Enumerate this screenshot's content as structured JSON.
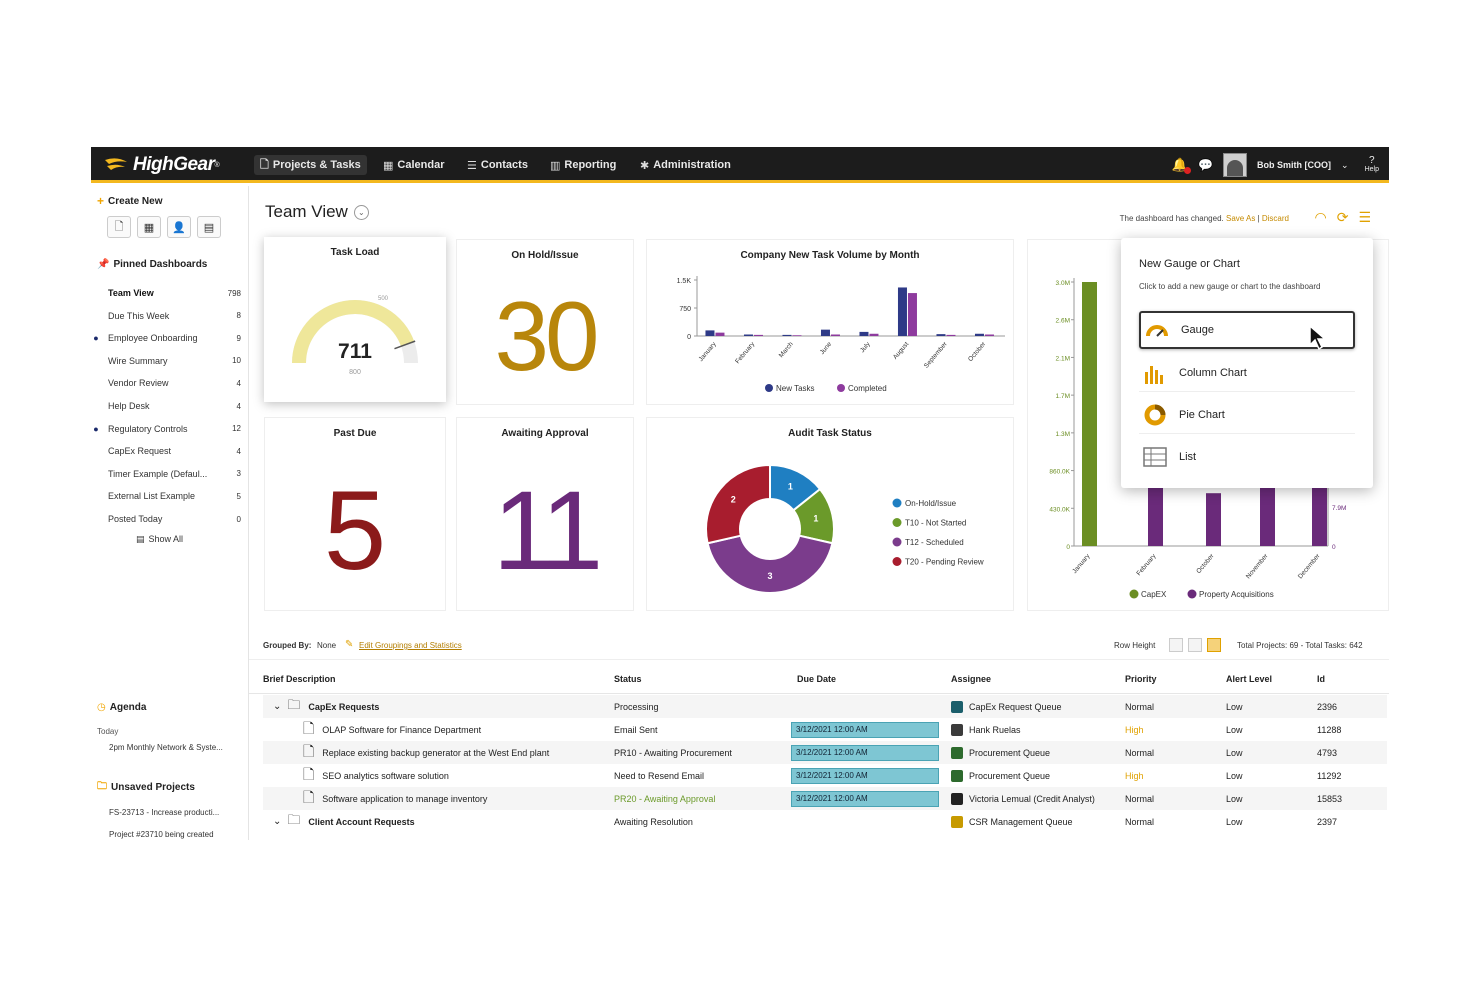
{
  "brand": "HighGear",
  "nav": {
    "items": [
      {
        "label": "Projects & Tasks",
        "icon": "document-icon",
        "active": true
      },
      {
        "label": "Calendar",
        "icon": "calendar-icon"
      },
      {
        "label": "Contacts",
        "icon": "contacts-icon"
      },
      {
        "label": "Reporting",
        "icon": "reporting-icon"
      },
      {
        "label": "Administration",
        "icon": "administration-icon"
      }
    ],
    "user": "Bob Smith [COO]",
    "help": "Help"
  },
  "sidebar": {
    "create_new": "Create New",
    "pinned_title": "Pinned Dashboards",
    "pinned": [
      {
        "label": "Team View",
        "count": "798",
        "dot": false,
        "bold": true
      },
      {
        "label": "Due This Week",
        "count": "8",
        "dot": false
      },
      {
        "label": "Employee Onboarding",
        "count": "9",
        "dot": true
      },
      {
        "label": "Wire Summary",
        "count": "10",
        "dot": false
      },
      {
        "label": "Vendor Review",
        "count": "4",
        "dot": false
      },
      {
        "label": "Help Desk",
        "count": "4",
        "dot": false
      },
      {
        "label": "Regulatory Controls",
        "count": "12",
        "dot": true
      },
      {
        "label": "CapEx Request",
        "count": "4",
        "dot": false
      },
      {
        "label": "Timer Example (Defaul...",
        "count": "3",
        "dot": false
      },
      {
        "label": "External List Example",
        "count": "5",
        "dot": false
      },
      {
        "label": "Posted Today",
        "count": "0",
        "dot": false
      }
    ],
    "show_all": "Show All",
    "agenda_title": "Agenda",
    "agenda_day": "Today",
    "agenda_item": "2pm Monthly Network & Syste...",
    "unsaved_title": "Unsaved Projects",
    "unsaved": [
      "FS-23713 - Increase producti...",
      "Project #23710 being created"
    ]
  },
  "header": {
    "title": "Team View",
    "changed_text": "The dashboard has changed.",
    "save_as": "Save As",
    "discard": "Discard"
  },
  "cards": {
    "task_load": {
      "title": "Task Load",
      "value": "711",
      "max_label": "800",
      "mark_label": "500",
      "fraction": 0.889
    },
    "on_hold": {
      "title": "On Hold/Issue",
      "value": "30",
      "color": "#b8860b"
    },
    "past_due": {
      "title": "Past Due",
      "value": "5",
      "color": "#8b1a1a"
    },
    "awaiting": {
      "title": "Awaiting Approval",
      "value": "11",
      "color": "#6a2a7a"
    }
  },
  "chart_data": [
    {
      "type": "bar",
      "title": "Company New Task Volume by Month",
      "categories": [
        "January",
        "February",
        "March",
        "June",
        "July",
        "August",
        "September",
        "October"
      ],
      "yticks": [
        "1.5K",
        "750",
        "0"
      ],
      "ylim": [
        0,
        1500
      ],
      "series": [
        {
          "name": "New Tasks",
          "color": "#2e3a87",
          "values": [
            150,
            40,
            30,
            170,
            110,
            1300,
            50,
            60
          ]
        },
        {
          "name": "Completed",
          "color": "#8e3b9e",
          "values": [
            90,
            30,
            20,
            40,
            60,
            1150,
            30,
            40
          ]
        }
      ],
      "legend": "bottom"
    },
    {
      "type": "pie",
      "title": "Audit Task Status",
      "slices": [
        {
          "name": "On-Hold/Issue",
          "value": 1,
          "color": "#1f7fc2"
        },
        {
          "name": "T10 - Not Started",
          "value": 1,
          "color": "#6b9a2a"
        },
        {
          "name": "T12 - Scheduled",
          "value": 3,
          "color": "#7b3c8c"
        },
        {
          "name": "T20 - Pending Review",
          "value": 2,
          "color": "#a81d2e"
        }
      ],
      "legend": "right"
    },
    {
      "type": "bar",
      "categories": [
        "January",
        "February",
        "October",
        "November",
        "December"
      ],
      "yticks": [
        "3.0M",
        "2.6M",
        "2.1M",
        "1.7M",
        "1.3M",
        "860.0K",
        "430.0K",
        "0"
      ],
      "ylim": [
        0,
        3000000
      ],
      "right_ticks": [
        "7.9M",
        "0"
      ],
      "series": [
        {
          "name": "CapEX",
          "color": "#6b8e23",
          "values": [
            3000000,
            0,
            0,
            0,
            0
          ]
        },
        {
          "name": "Property Acquisitions",
          "color": "#6a2a7a",
          "values": [
            0,
            800000,
            600000,
            700000,
            900000
          ]
        }
      ],
      "legend": "bottom"
    }
  ],
  "popup": {
    "title": "New Gauge or Chart",
    "subtitle": "Click to add a new gauge or chart to the dashboard",
    "options": [
      {
        "label": "Gauge",
        "icon": "gauge-icon",
        "selected": true
      },
      {
        "label": "Column Chart",
        "icon": "column-chart-icon"
      },
      {
        "label": "Pie Chart",
        "icon": "pie-chart-icon"
      },
      {
        "label": "List",
        "icon": "list-icon"
      }
    ]
  },
  "grid": {
    "grouped_by_label": "Grouped By:",
    "grouped_by_value": "None",
    "edit_link": "Edit Groupings and Statistics",
    "row_height_label": "Row Height",
    "totals": "Total Projects: 69 - Total Tasks: 642",
    "columns": [
      "Brief Description",
      "Status",
      "Due Date",
      "Assignee",
      "Priority",
      "Alert Level",
      "Id"
    ],
    "rows": [
      {
        "group": true,
        "desc": "CapEx Requests",
        "status": "Processing",
        "due": "",
        "assignee": "CapEx Request Queue",
        "priority": "Normal",
        "alert": "Low",
        "id": "2396",
        "alt": true
      },
      {
        "desc": "OLAP Software for Finance Department",
        "status": "Email Sent",
        "due": "3/12/2021 12:00 AM",
        "assignee": "Hank Ruelas",
        "priority": "High",
        "alert": "Low",
        "id": "11288"
      },
      {
        "desc": "Replace existing backup generator at the West End plant",
        "status": "PR10 - Awaiting Procurement",
        "due": "3/12/2021 12:00 AM",
        "assignee": "Procurement Queue",
        "priority": "Normal",
        "alert": "Low",
        "id": "4793",
        "alt": true
      },
      {
        "desc": "SEO analytics software solution",
        "status": "Need to Resend Email",
        "due": "3/12/2021 12:00 AM",
        "assignee": "Procurement Queue",
        "priority": "High",
        "alert": "Low",
        "id": "11292"
      },
      {
        "desc": "Software application to manage inventory",
        "status": "PR20 - Awaiting Approval",
        "due": "3/12/2021 12:00 AM",
        "assignee": "Victoria Lemual (Credit Analyst)",
        "priority": "Normal",
        "alert": "Low",
        "id": "15853",
        "alt": true,
        "status_green": true
      },
      {
        "group": true,
        "desc": "Client Account Requests",
        "status": "Awaiting Resolution",
        "due": "",
        "assignee": "CSR Management Queue",
        "priority": "Normal",
        "alert": "Low",
        "id": "2397"
      }
    ]
  }
}
